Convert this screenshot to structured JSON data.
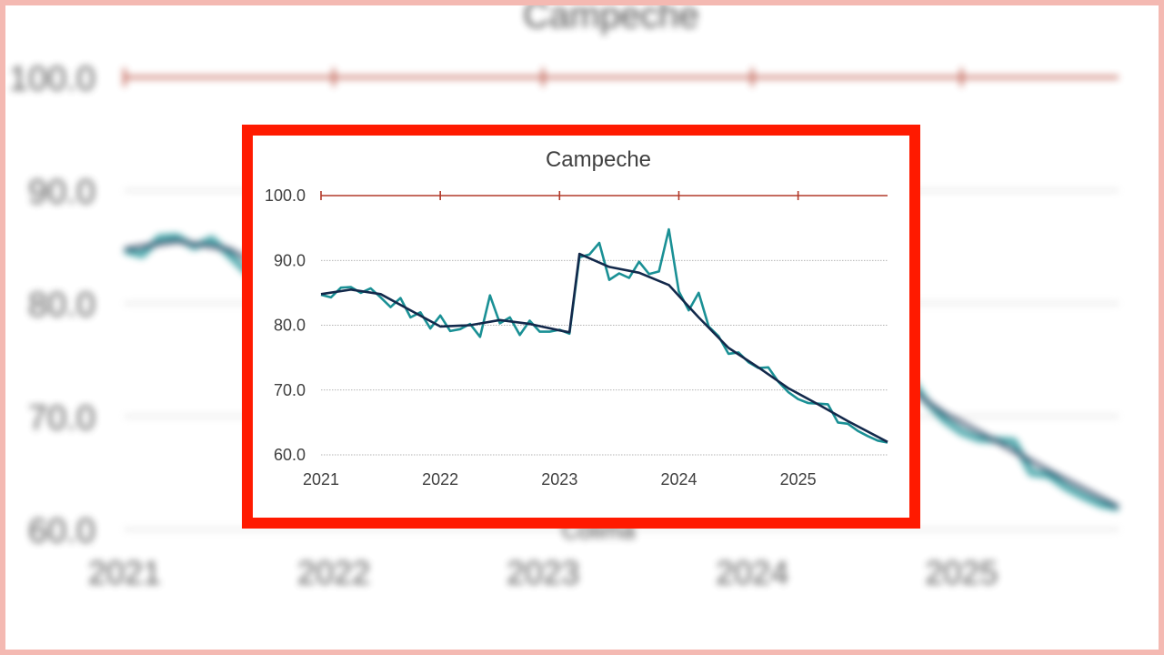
{
  "background": {
    "title": "Campeche",
    "bottom_caption": "Colima",
    "y_ticks": [
      "100.0",
      "90.0",
      "80.0",
      "70.0",
      "60.0"
    ],
    "x_ticks": [
      "2021",
      "2022",
      "2023",
      "2024",
      "2025"
    ]
  },
  "chart_data": {
    "type": "line",
    "title": "Campeche",
    "xlabel": "",
    "ylabel": "",
    "x_range": [
      "2021-01",
      "2025-10"
    ],
    "ylim": [
      60,
      100
    ],
    "y_ticks": [
      "100.0",
      "90.0",
      "80.0",
      "70.0",
      "60.0"
    ],
    "x_ticks": [
      "2021",
      "2022",
      "2023",
      "2024",
      "2025"
    ],
    "grid": true,
    "legend": "none",
    "series": [
      {
        "color": "#1a9095",
        "x": [
          "2021-01",
          "2021-02",
          "2021-03",
          "2021-04",
          "2021-05",
          "2021-06",
          "2021-07",
          "2021-08",
          "2021-09",
          "2021-10",
          "2021-11",
          "2021-12",
          "2022-01",
          "2022-02",
          "2022-03",
          "2022-04",
          "2022-05",
          "2022-06",
          "2022-07",
          "2022-08",
          "2022-09",
          "2022-10",
          "2022-11",
          "2022-12",
          "2023-01",
          "2023-02",
          "2023-03",
          "2023-04",
          "2023-05",
          "2023-06",
          "2023-07",
          "2023-08",
          "2023-09",
          "2023-10",
          "2023-11",
          "2023-12",
          "2024-01",
          "2024-02",
          "2024-03",
          "2024-04",
          "2024-05",
          "2024-06",
          "2024-07",
          "2024-08",
          "2024-09",
          "2024-10",
          "2024-11",
          "2024-12",
          "2025-01",
          "2025-02",
          "2025-03",
          "2025-04",
          "2025-05",
          "2025-06",
          "2025-07",
          "2025-08",
          "2025-09",
          "2025-10"
        ],
        "values": [
          84.7,
          84.3,
          85.8,
          85.9,
          85.0,
          85.7,
          84.3,
          82.8,
          84.2,
          81.2,
          82.0,
          79.5,
          81.5,
          79.1,
          79.4,
          80.2,
          78.2,
          84.6,
          80.3,
          81.2,
          78.5,
          80.7,
          79.0,
          79.0,
          79.3,
          78.7,
          90.5,
          90.9,
          92.7,
          87.0,
          88.0,
          87.3,
          89.8,
          87.9,
          88.3,
          94.8,
          85.2,
          82.3,
          85.0,
          79.8,
          78.3,
          75.6,
          75.8,
          74.3,
          73.4,
          73.5,
          71.3,
          69.7,
          68.6,
          68.0,
          67.9,
          67.8,
          65.0,
          64.8,
          63.7,
          62.9,
          62.2,
          61.9
        ]
      },
      {
        "color": "#13294b",
        "x": [
          "2021-01",
          "2021-04",
          "2021-07",
          "2021-10",
          "2022-01",
          "2022-04",
          "2022-07",
          "2022-10",
          "2023-01",
          "2023-02",
          "2023-03",
          "2023-06",
          "2023-09",
          "2023-12",
          "2024-03",
          "2024-06",
          "2024-09",
          "2024-12",
          "2025-03",
          "2025-06",
          "2025-10"
        ],
        "values": [
          84.8,
          85.5,
          84.8,
          82.3,
          79.8,
          80.0,
          80.8,
          80.2,
          79.2,
          78.9,
          91.0,
          89.0,
          88.1,
          86.2,
          81.2,
          76.5,
          73.5,
          70.3,
          67.8,
          65.2,
          62.0
        ]
      }
    ]
  }
}
